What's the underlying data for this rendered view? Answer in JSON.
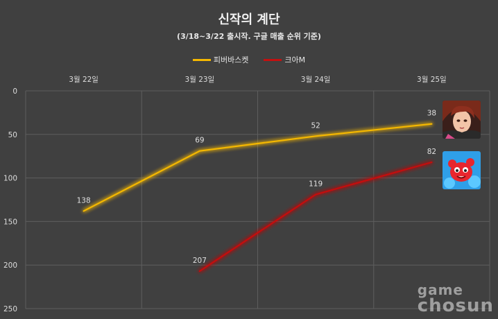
{
  "chart_data": {
    "type": "line",
    "title": "신작의 계단",
    "subtitle": "(3/18~3/22 출시작. 구글 매출 순위 기준)",
    "categories": [
      "3월 22일",
      "3월 23일",
      "3월 24일",
      "3월 25일"
    ],
    "series": [
      {
        "name": "피버바스켓",
        "color": "#f5b800",
        "values": [
          138,
          69,
          52,
          38
        ]
      },
      {
        "name": "크아M",
        "color": "#c41010",
        "values": [
          null,
          207,
          119,
          82
        ]
      }
    ],
    "yaxis": {
      "min": 0,
      "max": 250,
      "ticks": [
        0,
        50,
        100,
        150,
        200,
        250
      ],
      "inverted": true
    },
    "grid": true,
    "legend_position": "top",
    "xaxis_position": "top"
  },
  "watermark": {
    "line1": "game",
    "line2": "chosun"
  },
  "images": [
    {
      "name": "fever-basket-game-icon",
      "series": "피버바스켓"
    },
    {
      "name": "crazy-arcade-m-game-icon",
      "series": "크아M"
    }
  ]
}
